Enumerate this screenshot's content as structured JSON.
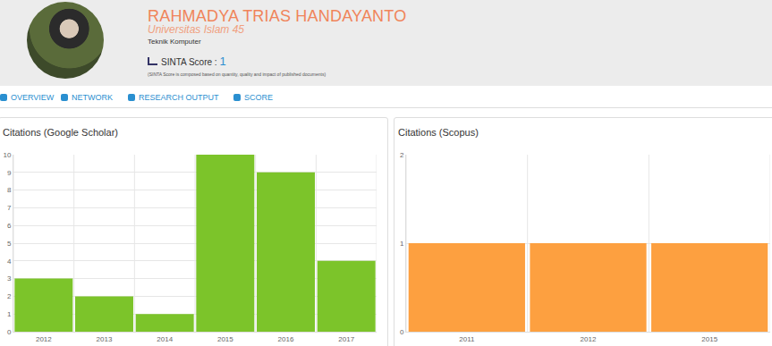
{
  "profile": {
    "name": "RAHMADYA TRIAS HANDAYANTO",
    "affiliation": "Universitas Islam 45",
    "department": "Teknik Komputer",
    "score_label": "SINTA Score : ",
    "score": 1,
    "score_note": "(SINTA Score is composed based on quantity, quality and impact of published documents)"
  },
  "tabs": [
    "OVERVIEW",
    "NETWORK",
    "RESEARCH OUTPUT",
    "SCORE"
  ],
  "chart_data": [
    {
      "type": "bar",
      "title": "Citations (Google Scholar)",
      "categories": [
        "2012",
        "2013",
        "2014",
        "2015",
        "2016",
        "2017"
      ],
      "values": [
        3,
        2,
        1,
        10,
        9,
        4
      ],
      "color": "#7cc42a",
      "ylim": [
        0,
        10
      ],
      "yticks": [
        0,
        1,
        2,
        3,
        4,
        5,
        6,
        7,
        8,
        9,
        10
      ],
      "grid": true
    },
    {
      "type": "bar",
      "title": "Citations (Scopus)",
      "categories": [
        "2011",
        "2012",
        "2015"
      ],
      "values": [
        1,
        1,
        1
      ],
      "color": "#fda040",
      "ylim": [
        0,
        2
      ],
      "yticks": [
        0,
        1,
        2
      ],
      "grid": true
    }
  ]
}
